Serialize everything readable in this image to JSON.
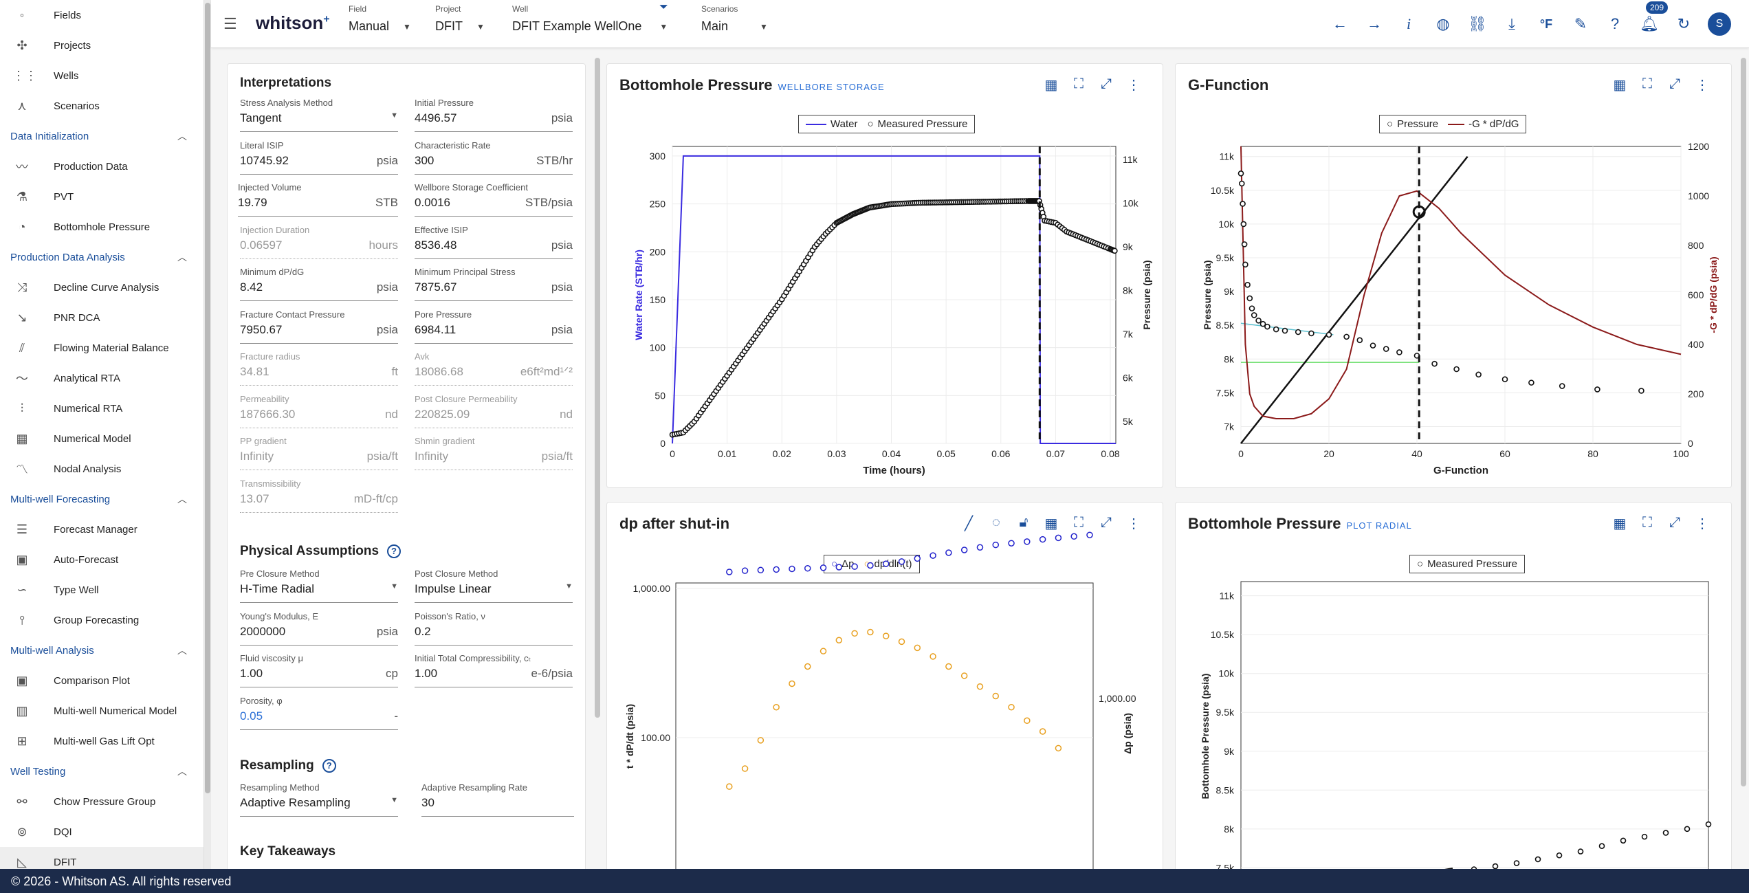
{
  "sidebar": {
    "top_items": [
      {
        "label": "Fields",
        "icon": "fields-icon"
      },
      {
        "label": "Projects",
        "icon": "projects-icon"
      },
      {
        "label": "Wells",
        "icon": "wells-icon"
      },
      {
        "label": "Scenarios",
        "icon": "scenarios-icon"
      }
    ],
    "sections": [
      {
        "title": "Data Initialization",
        "items": [
          "Production Data",
          "PVT",
          "Bottomhole Pressure"
        ]
      },
      {
        "title": "Production Data Analysis",
        "items": [
          "Decline Curve Analysis",
          "PNR DCA",
          "Flowing Material Balance",
          "Analytical RTA",
          "Numerical RTA",
          "Numerical Model",
          "Nodal Analysis"
        ]
      },
      {
        "title": "Multi-well Forecasting",
        "items": [
          "Forecast Manager",
          "Auto-Forecast",
          "Type Well",
          "Group Forecasting"
        ]
      },
      {
        "title": "Multi-well Analysis",
        "items": [
          "Comparison Plot",
          "Multi-well Numerical Model",
          "Multi-well Gas Lift Opt"
        ]
      },
      {
        "title": "Well Testing",
        "items": [
          "Chow Pressure Group",
          "DQI",
          "DFIT"
        ]
      }
    ]
  },
  "topbar": {
    "logo": "whitson",
    "logo_sup": "+",
    "field_label": "Field",
    "field_value": "Manual",
    "project_label": "Project",
    "project_value": "DFIT",
    "well_label": "Well",
    "well_value": "DFIT Example WellOne",
    "scenarios_label": "Scenarios",
    "scenarios_value": "Main",
    "notifications": "209",
    "unit_label": "°F",
    "info_label": "i",
    "avatar": "S"
  },
  "footer": "© 2026 - Whitson AS. All rights reserved",
  "interp": {
    "title": "Interpretations",
    "fields": [
      [
        "Stress Analysis Method",
        "Tangent",
        ""
      ],
      [
        "Initial Pressure",
        "4496.57",
        "psia"
      ],
      [
        "Literal ISIP",
        "10745.92",
        "psia"
      ],
      [
        "Characteristic Rate",
        "300",
        "STB/hr"
      ],
      [
        "Injected Volume",
        "19.79",
        "STB"
      ],
      [
        "Wellbore Storage Coefficient",
        "0.0016",
        "STB/psia"
      ],
      [
        "Injection Duration",
        "0.06597",
        "hours"
      ],
      [
        "Effective ISIP",
        "8536.48",
        "psia"
      ],
      [
        "Minimum dP/dG",
        "8.42",
        "psia"
      ],
      [
        "Minimum Principal Stress",
        "7875.67",
        "psia"
      ],
      [
        "Fracture Contact Pressure",
        "7950.67",
        "psia"
      ],
      [
        "Pore Pressure",
        "6984.11",
        "psia"
      ],
      [
        "Fracture radius",
        "34.81",
        "ft"
      ],
      [
        "Avk",
        "18086.68",
        "e6ft²md¹ᐟ²"
      ],
      [
        "Permeability",
        "187666.30",
        "nd"
      ],
      [
        "Post Closure Permeability",
        "220825.09",
        "nd"
      ],
      [
        "PP gradient",
        "Infinity",
        "psia/ft"
      ],
      [
        "Shmin gradient",
        "Infinity",
        "psia/ft"
      ],
      [
        "Transmissibility",
        "13.07",
        "mD-ft/cp"
      ]
    ],
    "phys_title": "Physical Assumptions",
    "phys": [
      [
        "Pre Closure Method",
        "H-Time Radial",
        ""
      ],
      [
        "Post Closure Method",
        "Impulse Linear",
        ""
      ],
      [
        "Young's Modulus, E",
        "2000000",
        "psia"
      ],
      [
        "Poisson's Ratio, ν",
        "0.2",
        ""
      ],
      [
        "Fluid viscosity μ",
        "1.00",
        "cp"
      ],
      [
        "Initial Total Compressibility, cₜ",
        "1.00",
        "e-6/psia"
      ],
      [
        "Porosity, φ",
        "0.05",
        "-"
      ]
    ],
    "resamp_title": "Resampling",
    "resamp": [
      [
        "Resampling Method",
        "Adaptive Resampling",
        ""
      ],
      [
        "Adaptive Resampling Rate",
        "30",
        ""
      ]
    ],
    "takeaways": "Key Takeaways"
  },
  "bhp": {
    "title": "Bottomhole Pressure",
    "subtitle": "WELLBORE STORAGE",
    "legend": [
      "Water",
      "Measured Pressure"
    ],
    "chart_data": {
      "type": "line",
      "xlabel": "Time (hours)",
      "ylabel": "Water Rate (STB/hr)",
      "y2label": "Pressure (psia)",
      "xticks": [
        "0",
        "0.01",
        "0.02",
        "0.03",
        "0.04",
        "0.05",
        "0.06",
        "0.07",
        "0.08"
      ],
      "yticks": [
        "0",
        "50",
        "100",
        "150",
        "200",
        "250",
        "300"
      ],
      "y2ticks": [
        "5k",
        "6k",
        "7k",
        "8k",
        "9k",
        "10k",
        "11k"
      ],
      "xlim": [
        0,
        0.081
      ],
      "ylim": [
        0,
        310
      ],
      "y2lim": [
        4500,
        11300
      ],
      "vline_x": 0.0671,
      "series": [
        {
          "name": "Water",
          "x": [
            0,
            0.002,
            0.0671,
            0.0672,
            0.081
          ],
          "y": [
            0,
            300,
            300,
            0,
            0
          ]
        },
        {
          "name": "Measured Pressure",
          "x": [
            0,
            0.002,
            0.004,
            0.006,
            0.008,
            0.01,
            0.012,
            0.014,
            0.016,
            0.018,
            0.02,
            0.022,
            0.024,
            0.026,
            0.028,
            0.03,
            0.033,
            0.036,
            0.04,
            0.045,
            0.05,
            0.055,
            0.06,
            0.065,
            0.067,
            0.068,
            0.07,
            0.072,
            0.074,
            0.076,
            0.078,
            0.08,
            0.081
          ],
          "y": [
            4700,
            4750,
            5000,
            5350,
            5700,
            6050,
            6400,
            6750,
            7100,
            7450,
            7800,
            8200,
            8600,
            9000,
            9300,
            9550,
            9750,
            9900,
            9980,
            10010,
            10020,
            10030,
            10040,
            10050,
            10050,
            9600,
            9550,
            9350,
            9250,
            9150,
            9050,
            8950,
            8900
          ]
        }
      ]
    }
  },
  "gfunc": {
    "title": "G-Function",
    "legend": [
      "Pressure",
      "-G * dP/dG"
    ],
    "chart_data": {
      "type": "line",
      "xlabel": "G-Function",
      "ylabel": "Pressure (psia)",
      "y2label": "-G * dP/dG (psia)",
      "xticks": [
        "0",
        "20",
        "40",
        "60",
        "80",
        "100"
      ],
      "yticks": [
        "7k",
        "7.5k",
        "8k",
        "8.5k",
        "9k",
        "9.5k",
        "10k",
        "10.5k",
        "11k"
      ],
      "y2ticks": [
        "0",
        "200",
        "400",
        "600",
        "800",
        "1000",
        "1200"
      ],
      "xlim": [
        0,
        100
      ],
      "ylim": [
        6750,
        11150
      ],
      "y2lim": [
        0,
        1200
      ],
      "vline_x": 40.5,
      "series": [
        {
          "name": "Pressure",
          "x": [
            0,
            0.2,
            0.4,
            0.6,
            0.8,
            1,
            1.5,
            2,
            2.5,
            3,
            4,
            5,
            6,
            8,
            10,
            13,
            16,
            20,
            24,
            27,
            30,
            33,
            36,
            40,
            44,
            49,
            54,
            60,
            66,
            73,
            81,
            91
          ],
          "y": [
            10750,
            10600,
            10300,
            10000,
            9700,
            9400,
            9100,
            8900,
            8750,
            8650,
            8570,
            8520,
            8480,
            8440,
            8420,
            8400,
            8380,
            8360,
            8330,
            8280,
            8200,
            8150,
            8100,
            8050,
            7930,
            7850,
            7770,
            7700,
            7650,
            7600,
            7550,
            7530
          ]
        },
        {
          "name": "-G * dP/dG",
          "x": [
            0,
            0.5,
            1,
            2,
            3,
            5,
            8,
            12,
            16,
            20,
            24,
            28,
            32,
            36,
            40,
            45,
            50,
            60,
            70,
            80,
            90,
            100
          ],
          "y": [
            1200,
            800,
            400,
            200,
            150,
            110,
            100,
            100,
            120,
            180,
            300,
            600,
            850,
            1000,
            1020,
            950,
            850,
            680,
            560,
            470,
            400,
            360
          ]
        }
      ]
    }
  },
  "dp": {
    "title": "dp after shut-in",
    "legend": [
      "Δp",
      "dp/dln(t)"
    ],
    "chart_data": {
      "type": "scatter",
      "ylabel": "t * dP/dt (psia)",
      "y2label": "Δp (psia)",
      "yticks": [
        "100.00",
        "1,000.00"
      ],
      "y2ticks": [
        "1,000.00"
      ],
      "series": [
        {
          "name": "Δp",
          "x": [
            0.1,
            0.2,
            0.3,
            0.4,
            0.5,
            0.6,
            0.7,
            0.8,
            0.9,
            1.0,
            1.1,
            1.2,
            1.3,
            1.4,
            1.5,
            1.6,
            1.7,
            1.8,
            1.9,
            2.0,
            2.1,
            2.2,
            2.3,
            2.4
          ],
          "y": [
            520,
            530,
            535,
            540,
            545,
            550,
            555,
            560,
            565,
            575,
            590,
            610,
            640,
            670,
            700,
            730,
            760,
            790,
            810,
            830,
            860,
            880,
            900,
            920
          ]
        },
        {
          "name": "dp/dln(t)",
          "x": [
            0.1,
            0.2,
            0.3,
            0.4,
            0.5,
            0.6,
            0.7,
            0.8,
            0.9,
            1.0,
            1.1,
            1.2,
            1.3,
            1.4,
            1.5,
            1.6,
            1.7,
            1.8,
            1.9,
            2.0,
            2.1,
            2.2
          ],
          "y": [
            47,
            62,
            96,
            160,
            230,
            300,
            380,
            450,
            500,
            510,
            480,
            440,
            400,
            350,
            300,
            260,
            220,
            190,
            160,
            130,
            110,
            85
          ]
        }
      ]
    }
  },
  "bhp_radial": {
    "title": "Bottomhole Pressure",
    "subtitle": "PLOT RADIAL",
    "legend": [
      "Measured Pressure"
    ],
    "chart_data": {
      "type": "scatter",
      "ylabel": "Bottomhole Pressure (psia)",
      "yticks": [
        "7.5k",
        "8k",
        "8.5k",
        "9k",
        "9.5k",
        "10k",
        "10.5k",
        "11k"
      ],
      "series": [
        {
          "name": "Measured Pressure",
          "x": [
            0.1,
            0.2,
            0.3,
            0.4,
            0.5,
            0.6,
            0.7,
            0.8,
            0.9,
            1.0,
            1.1,
            1.2,
            1.3,
            1.4,
            1.5,
            1.6,
            1.7,
            1.8,
            1.9,
            2.0
          ],
          "y": [
            7180,
            7210,
            7240,
            7270,
            7300,
            7330,
            7380,
            7430,
            7480,
            7520,
            7560,
            7610,
            7660,
            7710,
            7780,
            7850,
            7900,
            7950,
            8000,
            8060
          ]
        }
      ]
    }
  }
}
